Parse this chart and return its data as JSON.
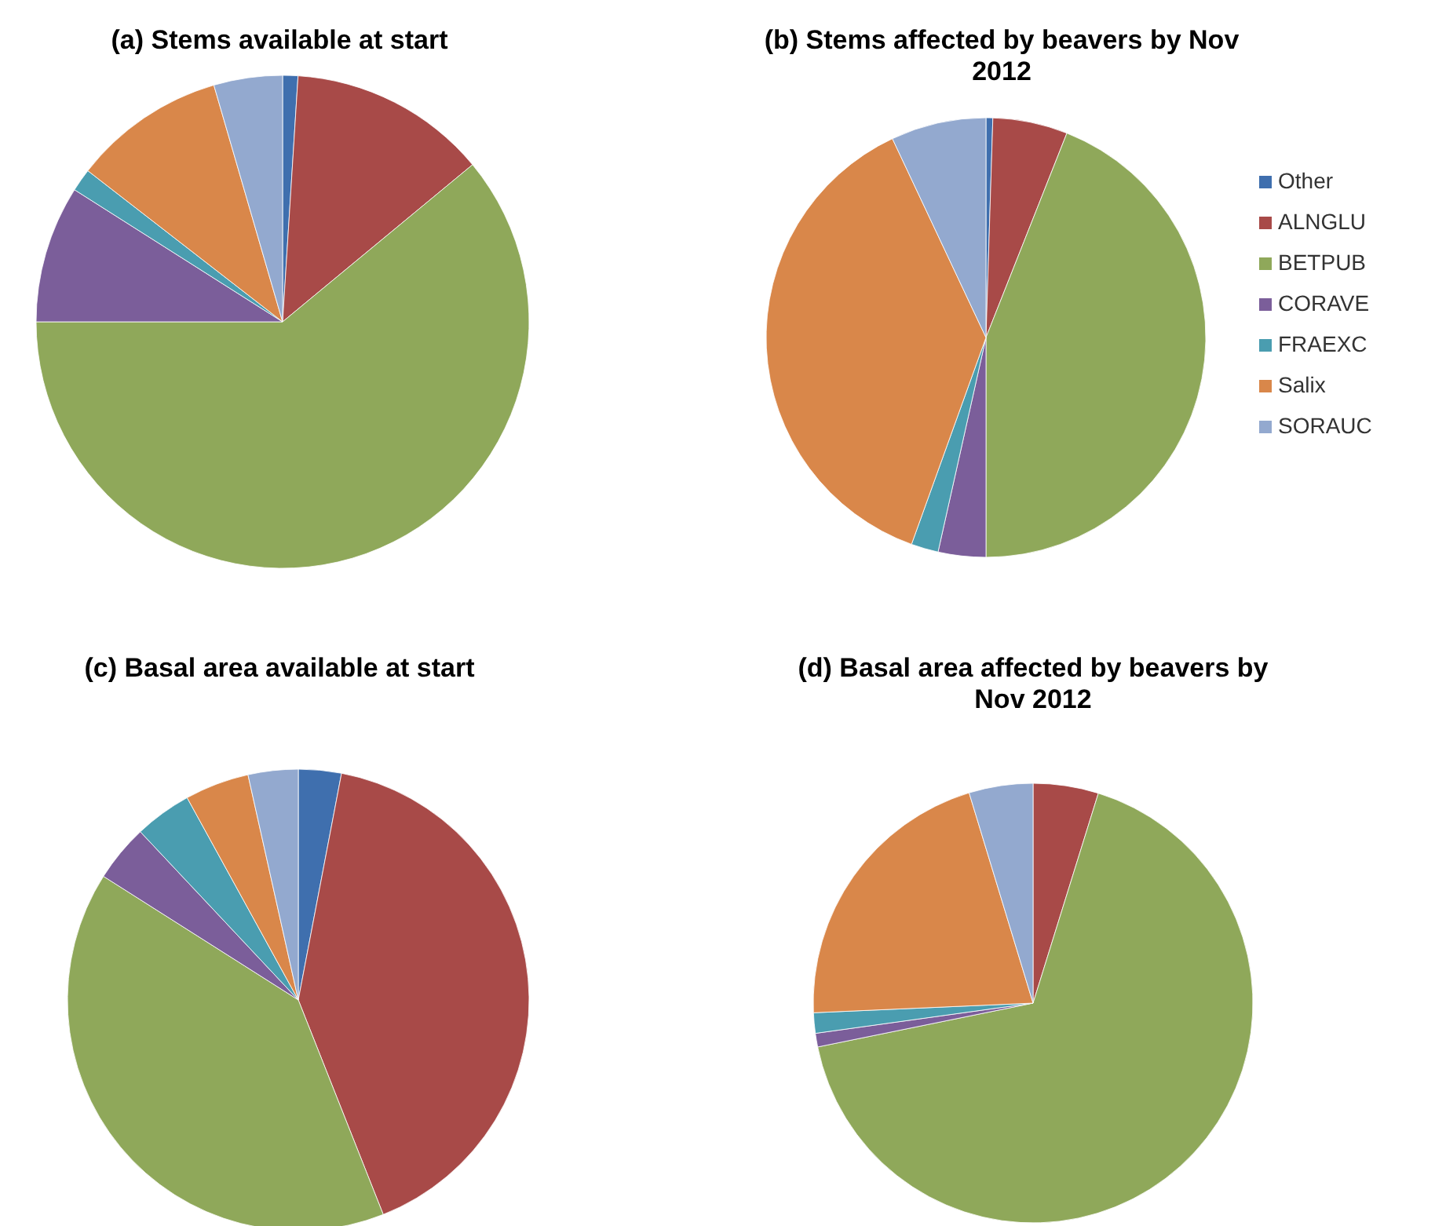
{
  "chart_data": [
    {
      "type": "pie",
      "title": "(a) Stems available at start",
      "categories": [
        null,
        null,
        null,
        null,
        null,
        null,
        null
      ],
      "values": [
        1,
        13,
        61,
        9,
        1.5,
        10,
        4.5
      ],
      "colors": [
        "#3f6fae",
        "#a84a48",
        "#8fa85a",
        "#7b5e9a",
        "#4a9db0",
        "#d9874a",
        "#93a9cf"
      ]
    },
    {
      "type": "pie",
      "title": "(b) Stems affected by beavers by Nov 2012",
      "categories": [
        "Other",
        "ALNGLU",
        "BETPUB",
        "CORAVE",
        "FRAEXC",
        "Salix",
        "SORAUC"
      ],
      "values": [
        0.5,
        5.5,
        44,
        3.5,
        2,
        37.5,
        7
      ],
      "colors": [
        "#3f6fae",
        "#a84a48",
        "#8fa85a",
        "#7b5e9a",
        "#4a9db0",
        "#d9874a",
        "#93a9cf"
      ],
      "legend": "right"
    },
    {
      "type": "pie",
      "title": "(c) Basal area available at start",
      "categories": [
        null,
        null,
        null,
        null,
        null,
        null,
        null
      ],
      "values": [
        3,
        41,
        40,
        4,
        4,
        4.5,
        3.5
      ],
      "colors": [
        "#3f6fae",
        "#a84a48",
        "#8fa85a",
        "#7b5e9a",
        "#4a9db0",
        "#d9874a",
        "#93a9cf"
      ]
    },
    {
      "type": "pie",
      "title": "(d) Basal area affected by beavers by Nov 2012",
      "categories": [
        null,
        null,
        null,
        null,
        null,
        null,
        null
      ],
      "values": [
        0,
        4.8,
        67,
        1,
        1.5,
        21,
        4.7
      ],
      "colors": [
        "#3f6fae",
        "#a84a48",
        "#8fa85a",
        "#7b5e9a",
        "#4a9db0",
        "#d9874a",
        "#93a9cf"
      ]
    }
  ]
}
